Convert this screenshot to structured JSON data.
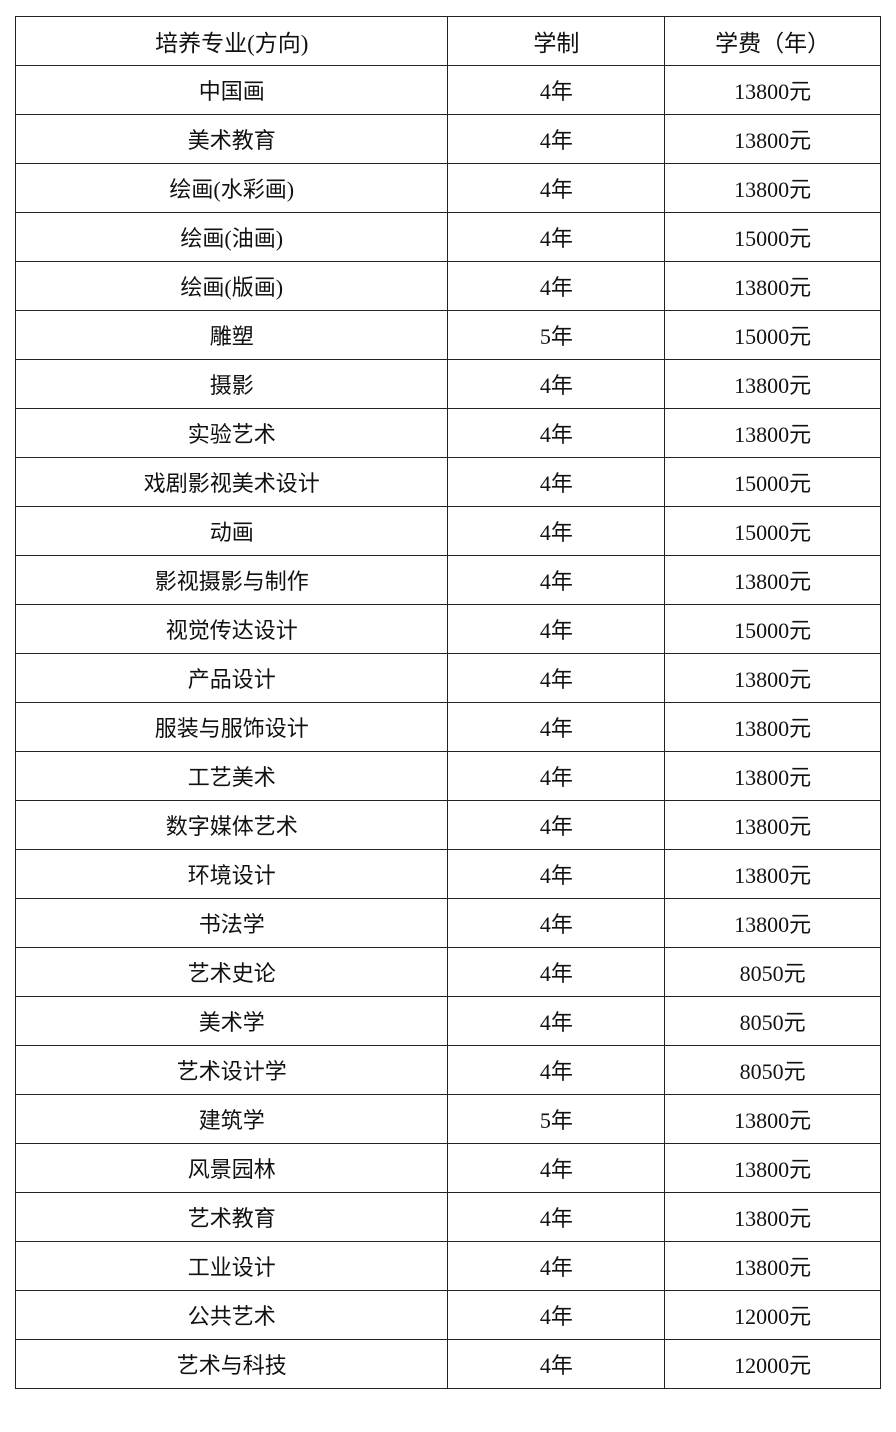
{
  "table": {
    "headers": [
      "培养专业(方向)",
      "学制",
      "学费（年）"
    ],
    "rows": [
      [
        "中国画",
        "4年",
        "13800元"
      ],
      [
        "美术教育",
        "4年",
        "13800元"
      ],
      [
        "绘画(水彩画)",
        "4年",
        "13800元"
      ],
      [
        "绘画(油画)",
        "4年",
        "15000元"
      ],
      [
        "绘画(版画)",
        "4年",
        "13800元"
      ],
      [
        "雕塑",
        "5年",
        "15000元"
      ],
      [
        "摄影",
        "4年",
        "13800元"
      ],
      [
        "实验艺术",
        "4年",
        "13800元"
      ],
      [
        "戏剧影视美术设计",
        "4年",
        "15000元"
      ],
      [
        "动画",
        "4年",
        "15000元"
      ],
      [
        "影视摄影与制作",
        "4年",
        "13800元"
      ],
      [
        "视觉传达设计",
        "4年",
        "15000元"
      ],
      [
        "产品设计",
        "4年",
        "13800元"
      ],
      [
        "服装与服饰设计",
        "4年",
        "13800元"
      ],
      [
        "工艺美术",
        "4年",
        "13800元"
      ],
      [
        "数字媒体艺术",
        "4年",
        "13800元"
      ],
      [
        "环境设计",
        "4年",
        "13800元"
      ],
      [
        "书法学",
        "4年",
        "13800元"
      ],
      [
        "艺术史论",
        "4年",
        "8050元"
      ],
      [
        "美术学",
        "4年",
        "8050元"
      ],
      [
        "艺术设计学",
        "4年",
        "8050元"
      ],
      [
        "建筑学",
        "5年",
        "13800元"
      ],
      [
        "风景园林",
        "4年",
        "13800元"
      ],
      [
        "艺术教育",
        "4年",
        "13800元"
      ],
      [
        "工业设计",
        "4年",
        "13800元"
      ],
      [
        "公共艺术",
        "4年",
        "12000元"
      ],
      [
        "艺术与科技",
        "4年",
        "12000元"
      ]
    ]
  }
}
